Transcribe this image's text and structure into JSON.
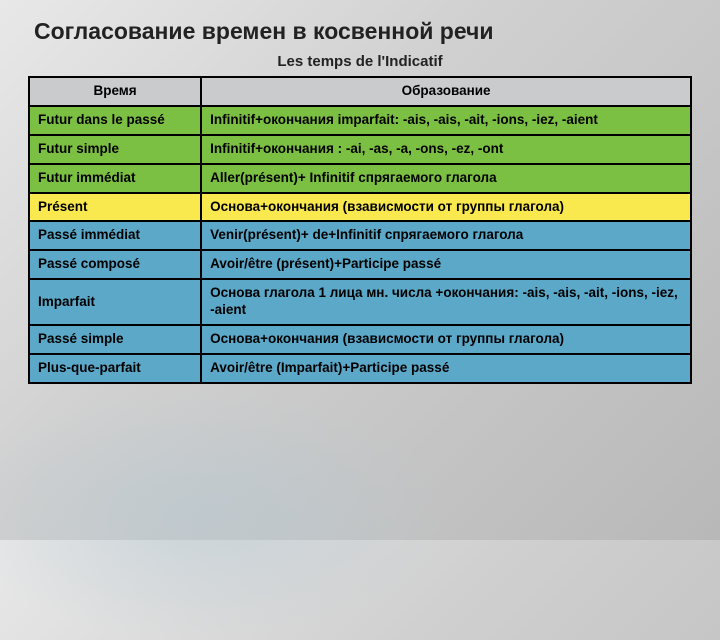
{
  "title": "Согласование времен в косвенной речи",
  "subtitle": "Les temps de l'Indicatif",
  "headers": {
    "col1": "Время",
    "col2": "Образование"
  },
  "rowColors": {
    "green": "#7bc043",
    "yellow": "#f9e94e",
    "blue": "#5ba8c9",
    "headerBg": "#cacbcd"
  },
  "rows": [
    {
      "color": "green",
      "tense": "Futur dans le passé",
      "formation": "Infinitif+окончания imparfait: -ais, -ais, -ait, -ions, -iez, -aient"
    },
    {
      "color": "green",
      "tense": "Futur simple",
      "formation": "Infinitif+окончания : -ai, -as, -a, -ons, -ez, -ont"
    },
    {
      "color": "green",
      "tense": "Futur immédiat",
      "formation": "Aller(présent)+ Infinitif спрягаемого глагола"
    },
    {
      "color": "yellow",
      "tense": "Présent",
      "formation": "Основа+окончания (взависмости от группы глагола)"
    },
    {
      "color": "blue",
      "tense": "Passé immédiat",
      "formation": "Venir(présent)+ de+Infinitif спрягаемого глагола"
    },
    {
      "color": "blue",
      "tense": "Passé composé",
      "formation": "Avoir/être (présent)+Participe passé"
    },
    {
      "color": "blue",
      "tense": "Imparfait",
      "formation": "Основа глагола 1 лица мн. числа +окончания: -ais, -ais, -ait, -ions, -iez, -aient"
    },
    {
      "color": "blue",
      "tense": "Passé simple",
      "formation": "Основа+окончания (взависмости от группы глагола)"
    },
    {
      "color": "blue",
      "tense": "Plus-que-parfait",
      "formation": "Avoir/être (Imparfait)+Participe passé"
    }
  ]
}
